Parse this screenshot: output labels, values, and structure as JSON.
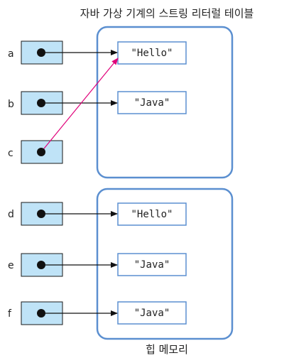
{
  "titles": {
    "string_pool": "자바 가상 기계의 스트링 리터럴 테이블",
    "heap": "힙 메모리"
  },
  "variables": [
    "a",
    "b",
    "c",
    "d",
    "e",
    "f"
  ],
  "pool_literals": [
    "\"Hello\"",
    "\"Java\""
  ],
  "heap_objects": [
    "\"Hello\"",
    "\"Java\"",
    "\"Java\""
  ],
  "colors": {
    "panel_border": "#5b8fd0",
    "variable_fill": "#bfe3f7",
    "shared_reference_arrow": "#e0007a",
    "arrow": "#111111"
  }
}
